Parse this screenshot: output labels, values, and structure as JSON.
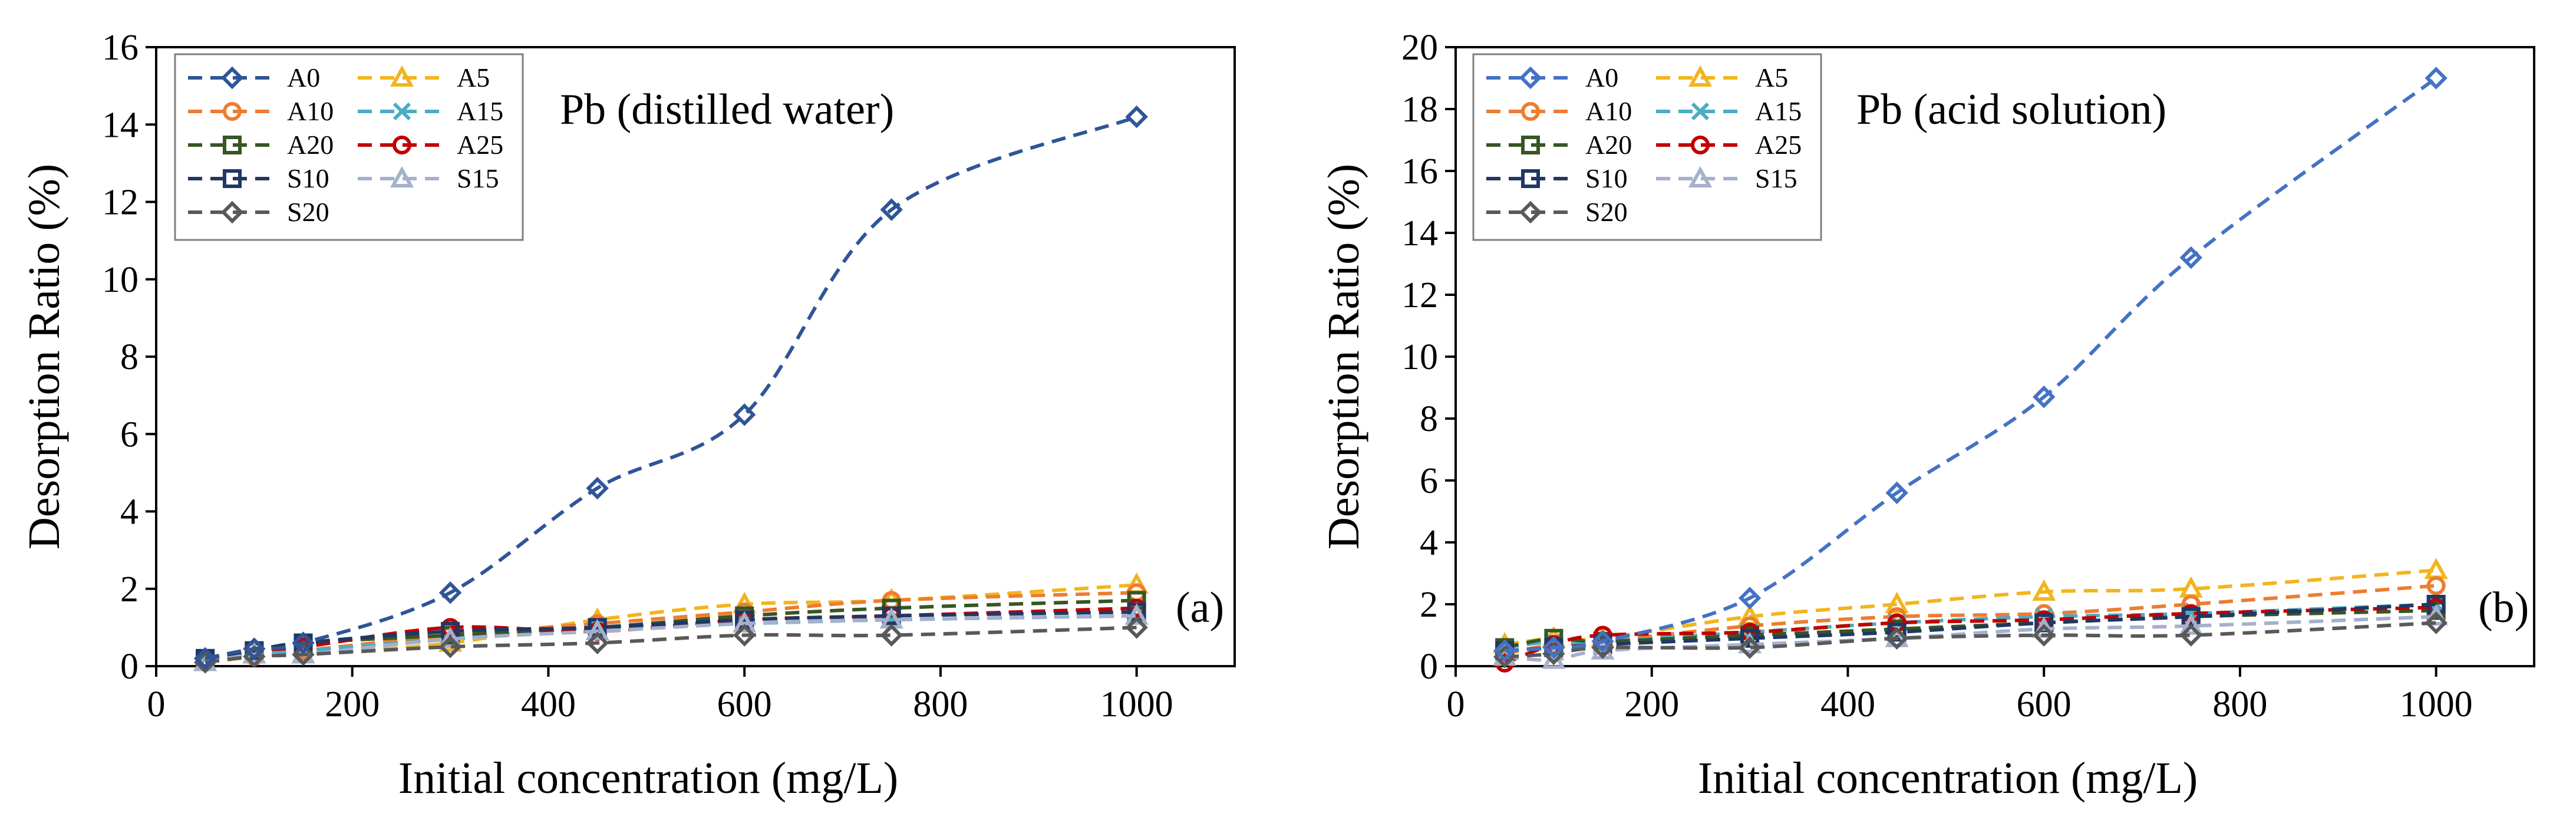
{
  "chart_data": [
    {
      "type": "line",
      "panel_label": "(a)",
      "annotation": "Pb (distilled water)",
      "xlabel": "Initial concentration (mg/L)",
      "ylabel": "Desorption Ratio (%)",
      "xlim": [
        0,
        1100
      ],
      "ylim": [
        0,
        16
      ],
      "xticks": [
        0,
        200,
        400,
        600,
        800,
        1000
      ],
      "yticks": [
        0,
        2,
        4,
        6,
        8,
        10,
        12,
        14,
        16
      ],
      "legend_position": "top-left",
      "grid": false,
      "x": [
        50,
        100,
        150,
        300,
        450,
        600,
        750,
        1000
      ],
      "series": [
        {
          "name": "A0",
          "color": "#2F5597",
          "marker": "diamond",
          "values": [
            0.2,
            0.45,
            0.6,
            1.9,
            4.6,
            6.5,
            11.8,
            14.2
          ]
        },
        {
          "name": "A5",
          "color": "#F2B51E",
          "marker": "triangle",
          "values": [
            0.1,
            0.3,
            0.3,
            0.6,
            1.2,
            1.6,
            1.7,
            2.1
          ]
        },
        {
          "name": "A10",
          "color": "#ED7D31",
          "marker": "circle",
          "values": [
            0.1,
            0.25,
            0.4,
            0.8,
            1.1,
            1.4,
            1.7,
            1.9
          ]
        },
        {
          "name": "A15",
          "color": "#4BACC6",
          "marker": "x",
          "values": [
            0.2,
            0.3,
            0.4,
            0.7,
            1.0,
            1.1,
            1.2,
            1.3
          ]
        },
        {
          "name": "A20",
          "color": "#375623",
          "marker": "square",
          "values": [
            0.2,
            0.4,
            0.6,
            0.8,
            1.0,
            1.3,
            1.5,
            1.7
          ]
        },
        {
          "name": "A25",
          "color": "#C00000",
          "marker": "circle",
          "values": [
            0.2,
            0.4,
            0.5,
            1.0,
            0.9,
            1.2,
            1.3,
            1.5
          ]
        },
        {
          "name": "S10",
          "color": "#1F3864",
          "marker": "square",
          "values": [
            0.2,
            0.4,
            0.6,
            0.9,
            1.0,
            1.2,
            1.3,
            1.4
          ]
        },
        {
          "name": "S15",
          "color": "#A5B0CC",
          "marker": "triangle",
          "values": [
            0.1,
            0.3,
            0.3,
            0.7,
            0.9,
            1.1,
            1.2,
            1.3
          ]
        },
        {
          "name": "S20",
          "color": "#595959",
          "marker": "diamond",
          "values": [
            0.1,
            0.25,
            0.3,
            0.5,
            0.6,
            0.8,
            0.8,
            1.0
          ]
        }
      ]
    },
    {
      "type": "line",
      "panel_label": "(b)",
      "annotation": "Pb (acid solution)",
      "xlabel": "Initial concentration (mg/L)",
      "ylabel": "Desorption Ratio (%)",
      "xlim": [
        0,
        1100
      ],
      "ylim": [
        0,
        20
      ],
      "xticks": [
        0,
        200,
        400,
        600,
        800,
        1000
      ],
      "yticks": [
        0,
        2,
        4,
        6,
        8,
        10,
        12,
        14,
        16,
        18,
        20
      ],
      "legend_position": "top-left",
      "grid": false,
      "x": [
        50,
        100,
        150,
        300,
        450,
        600,
        750,
        1000
      ],
      "series": [
        {
          "name": "A0",
          "color": "#4472C4",
          "marker": "diamond",
          "values": [
            0.5,
            0.6,
            0.8,
            2.2,
            5.6,
            8.7,
            13.2,
            19.0
          ]
        },
        {
          "name": "A5",
          "color": "#F2B51E",
          "marker": "triangle",
          "values": [
            0.7,
            0.9,
            0.9,
            1.6,
            2.0,
            2.4,
            2.5,
            3.1
          ]
        },
        {
          "name": "A10",
          "color": "#ED7D31",
          "marker": "circle",
          "values": [
            0.4,
            0.7,
            0.8,
            1.3,
            1.6,
            1.7,
            2.0,
            2.6
          ]
        },
        {
          "name": "A15",
          "color": "#4BACC6",
          "marker": "x",
          "values": [
            0.6,
            0.8,
            0.8,
            1.1,
            1.4,
            1.6,
            1.7,
            2.0
          ]
        },
        {
          "name": "A20",
          "color": "#375623",
          "marker": "square",
          "values": [
            0.6,
            0.9,
            0.8,
            1.0,
            1.2,
            1.4,
            1.6,
            1.8
          ]
        },
        {
          "name": "A25",
          "color": "#C00000",
          "marker": "circle",
          "values": [
            0.1,
            0.7,
            1.0,
            1.1,
            1.4,
            1.5,
            1.7,
            1.9
          ]
        },
        {
          "name": "S10",
          "color": "#1F3864",
          "marker": "square",
          "values": [
            0.5,
            0.6,
            0.7,
            0.9,
            1.1,
            1.4,
            1.6,
            2.0
          ]
        },
        {
          "name": "S15",
          "color": "#A5B0CC",
          "marker": "triangle",
          "values": [
            0.3,
            0.2,
            0.5,
            0.7,
            0.9,
            1.2,
            1.3,
            1.6
          ]
        },
        {
          "name": "S20",
          "color": "#595959",
          "marker": "diamond",
          "values": [
            0.3,
            0.4,
            0.6,
            0.6,
            0.9,
            1.0,
            1.0,
            1.4
          ]
        }
      ]
    }
  ]
}
